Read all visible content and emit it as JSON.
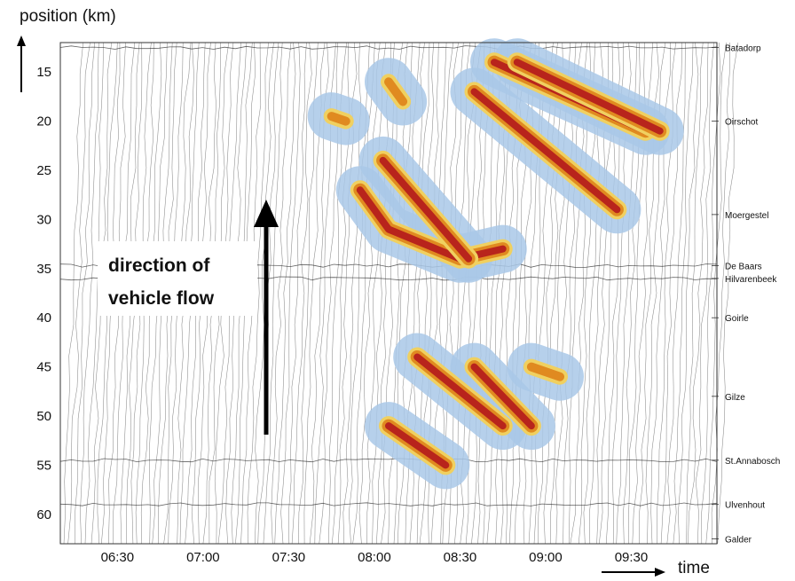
{
  "chart_data": {
    "type": "heatmap",
    "ylabel": "position (km)",
    "xlabel": "time",
    "x_ticks": [
      "06:30",
      "07:00",
      "07:30",
      "08:00",
      "08:30",
      "09:00",
      "09:30"
    ],
    "x_range": [
      "06:10",
      "10:00"
    ],
    "y_ticks": [
      15,
      20,
      25,
      30,
      35,
      40,
      45,
      50,
      55,
      60
    ],
    "y_range": [
      12,
      63
    ],
    "y_inverted": true,
    "locations": [
      {
        "name": "Batadorp",
        "km": 12.5
      },
      {
        "name": "Oirschot",
        "km": 20
      },
      {
        "name": "Moergestel",
        "km": 29.5
      },
      {
        "name": "De Baars",
        "km": 34.7
      },
      {
        "name": "Hilvarenbeek",
        "km": 36
      },
      {
        "name": "Goirle",
        "km": 40
      },
      {
        "name": "Gilze",
        "km": 48
      },
      {
        "name": "St.Annabosch",
        "km": 54.5
      },
      {
        "name": "Ulvenhout",
        "km": 59
      },
      {
        "name": "Galder",
        "km": 62.5
      }
    ],
    "annotation": {
      "line1": "direction of",
      "line2": "vehicle flow"
    },
    "colors": {
      "free_flow": "#ffffff",
      "light_congestion": "#a9c8e8",
      "medium": "#f0d060",
      "heavy": "#e08a20",
      "severe": "#b8241c"
    },
    "congestion_regions": [
      {
        "level": "severe",
        "points": [
          [
            "08:42",
            "14"
          ],
          [
            "09:35",
            "21"
          ]
        ]
      },
      {
        "level": "severe",
        "points": [
          [
            "08:50",
            "14"
          ],
          [
            "09:40",
            "21"
          ]
        ]
      },
      {
        "level": "severe",
        "points": [
          [
            "08:35",
            "17"
          ],
          [
            "09:25",
            "29"
          ]
        ]
      },
      {
        "level": "severe",
        "points": [
          [
            "07:55",
            "27"
          ],
          [
            "08:05",
            "31"
          ],
          [
            "08:30",
            "34"
          ],
          [
            "08:45",
            "33"
          ]
        ]
      },
      {
        "level": "severe",
        "points": [
          [
            "08:03",
            "24"
          ],
          [
            "08:33",
            "34"
          ]
        ]
      },
      {
        "level": "heavy",
        "points": [
          [
            "08:05",
            "16"
          ],
          [
            "08:10",
            "18"
          ]
        ]
      },
      {
        "level": "heavy",
        "points": [
          [
            "07:45",
            "19.5"
          ],
          [
            "07:50",
            "20"
          ]
        ]
      },
      {
        "level": "severe",
        "points": [
          [
            "08:15",
            "44"
          ],
          [
            "08:45",
            "51"
          ]
        ]
      },
      {
        "level": "severe",
        "points": [
          [
            "08:35",
            "45"
          ],
          [
            "08:55",
            "51"
          ]
        ]
      },
      {
        "level": "heavy",
        "points": [
          [
            "08:55",
            "45"
          ],
          [
            "09:05",
            "46"
          ]
        ]
      },
      {
        "level": "severe",
        "points": [
          [
            "08:05",
            "51"
          ],
          [
            "08:25",
            "55"
          ]
        ]
      }
    ]
  }
}
